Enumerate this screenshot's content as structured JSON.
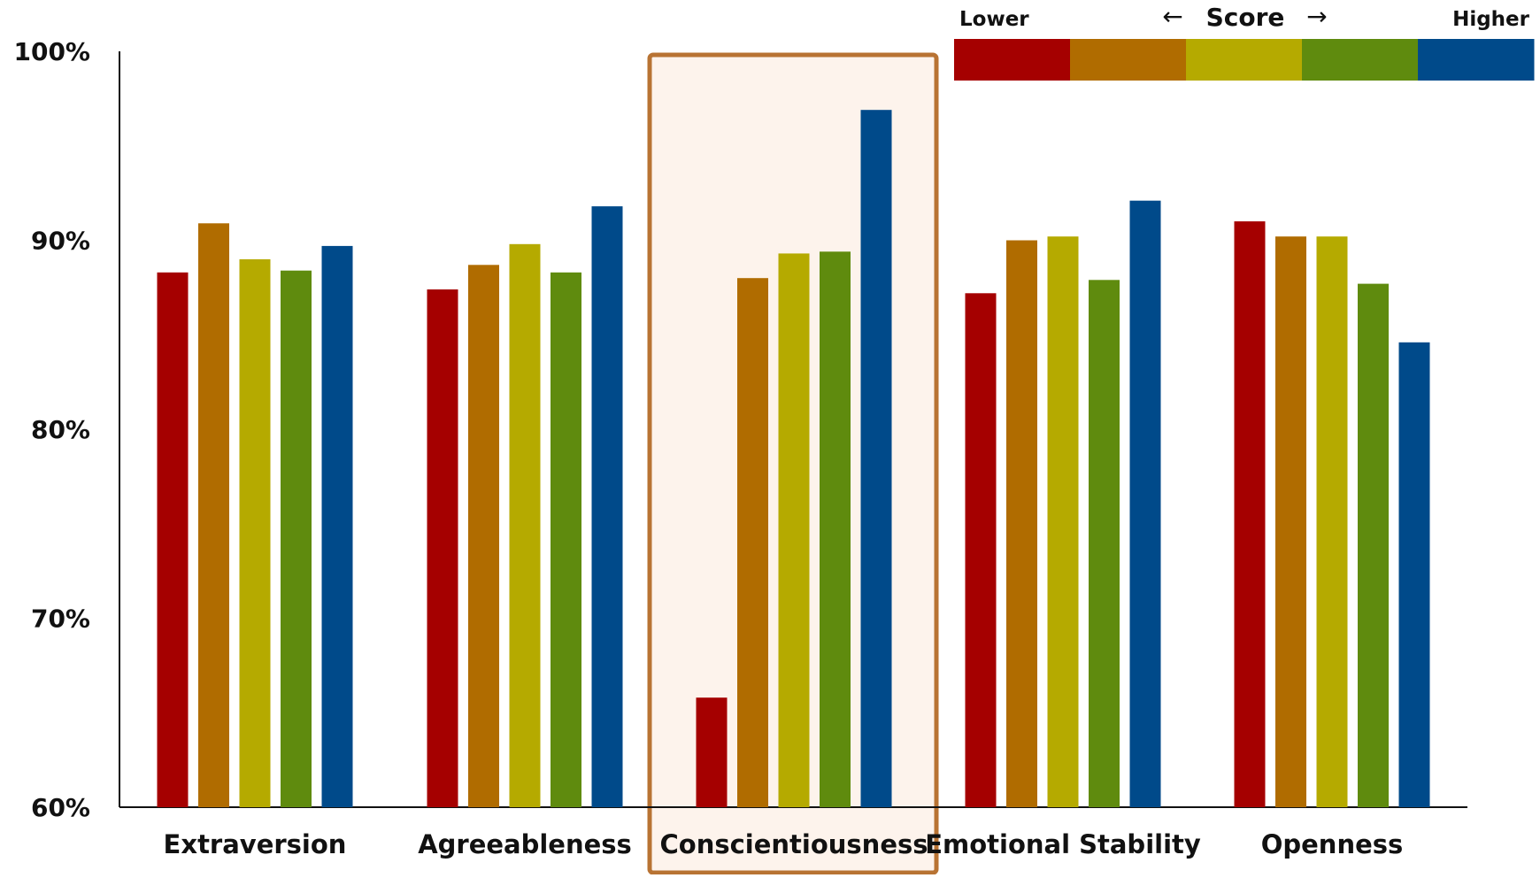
{
  "chart_data": {
    "type": "bar",
    "title": "",
    "xlabel": "",
    "ylabel": "",
    "ylim": [
      60,
      100
    ],
    "y_ticks": [
      {
        "value": 60,
        "label": "60%"
      },
      {
        "value": 70,
        "label": "70%"
      },
      {
        "value": 80,
        "label": "80%"
      },
      {
        "value": 90,
        "label": "90%"
      },
      {
        "value": 100,
        "label": "100%"
      }
    ],
    "grid": false,
    "categories": [
      "Extraversion",
      "Agreeableness",
      "Conscientiousness",
      "Emotional Stability",
      "Openness"
    ],
    "highlight": {
      "category": "Conscientiousness",
      "border_color": "#B87333",
      "fill_color": "#FDF3EC"
    },
    "series": [
      {
        "color": "#A50000",
        "values": [
          88.3,
          87.4,
          65.8,
          87.2,
          91.0
        ]
      },
      {
        "color": "#B06C00",
        "values": [
          90.9,
          88.7,
          88.0,
          90.0,
          90.2
        ]
      },
      {
        "color": "#B5AA00",
        "values": [
          89.0,
          89.8,
          89.3,
          90.2,
          90.2
        ]
      },
      {
        "color": "#5F8B0E",
        "values": [
          88.4,
          88.3,
          89.4,
          87.9,
          87.7
        ]
      },
      {
        "color": "#004A8A",
        "values": [
          89.7,
          91.8,
          96.9,
          92.1,
          84.6
        ]
      }
    ],
    "legend": {
      "position": "top-right",
      "title": "Score",
      "low_label": "Lower",
      "high_label": "Higher",
      "left_arrow": "←",
      "right_arrow": "→",
      "colors": [
        "#A50000",
        "#B06C00",
        "#B5AA00",
        "#5F8B0E",
        "#004A8A"
      ]
    }
  }
}
